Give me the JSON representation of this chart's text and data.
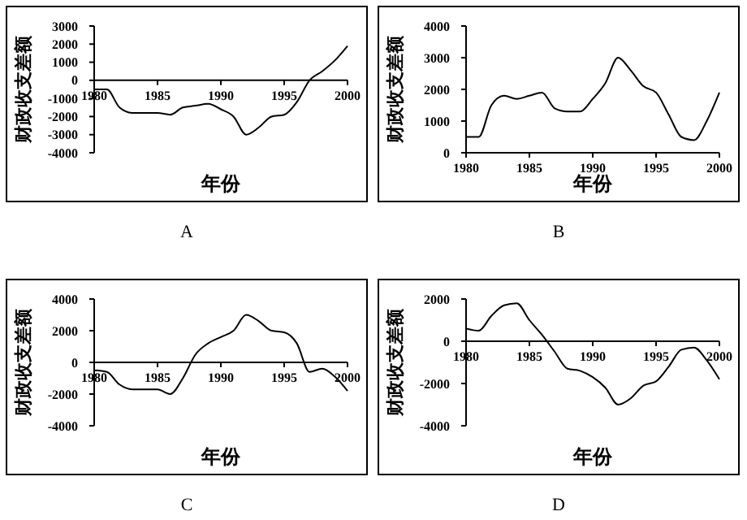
{
  "chart_data": [
    {
      "type": "line",
      "xlabel": "年份",
      "ylabel": "财政收支差额",
      "annotations": [
        "A"
      ],
      "x": [
        1980,
        1981,
        1982,
        1983,
        1984,
        1985,
        1986,
        1987,
        1988,
        1989,
        1990,
        1991,
        1992,
        1993,
        1994,
        1995,
        1996,
        1997,
        1998,
        1999,
        2000
      ],
      "series": [
        {
          "color": "#000000",
          "values": [
            -500,
            -500,
            -1500,
            -1800,
            -1800,
            -1800,
            -1900,
            -1500,
            -1400,
            -1300,
            -1600,
            -2000,
            -3000,
            -2600,
            -2000,
            -1900,
            -1200,
            0,
            500,
            1100,
            1900
          ]
        }
      ],
      "xlim": [
        1980,
        2000
      ],
      "xticks": [
        1980,
        1985,
        1990,
        1995,
        2000
      ],
      "ylim": [
        -4000,
        3000
      ],
      "yticks": [
        -4000,
        -3000,
        -2000,
        -1000,
        0,
        1000,
        2000,
        3000
      ],
      "grid": false,
      "marker": "none",
      "line_style": "solid"
    },
    {
      "type": "line",
      "xlabel": "年份",
      "ylabel": "财政收支差额",
      "annotations": [
        "B"
      ],
      "x": [
        1980,
        1981,
        1982,
        1983,
        1984,
        1985,
        1986,
        1987,
        1988,
        1989,
        1990,
        1991,
        1992,
        1993,
        1994,
        1995,
        1996,
        1997,
        1998,
        1999,
        2000
      ],
      "series": [
        {
          "color": "#000000",
          "values": [
            500,
            500,
            1500,
            1800,
            1700,
            1800,
            1900,
            1400,
            1300,
            1300,
            1700,
            2200,
            3000,
            2600,
            2100,
            1900,
            1200,
            500,
            400,
            1000,
            1900
          ]
        }
      ],
      "xlim": [
        1980,
        2000
      ],
      "xticks": [
        1980,
        1985,
        1990,
        1995,
        2000
      ],
      "ylim": [
        0,
        4000
      ],
      "yticks": [
        0,
        1000,
        2000,
        3000,
        4000
      ],
      "grid": false,
      "marker": "none",
      "line_style": "solid"
    },
    {
      "type": "line",
      "xlabel": "年份",
      "ylabel": "财政收支差额",
      "annotations": [
        "C"
      ],
      "x": [
        1980,
        1981,
        1982,
        1983,
        1984,
        1985,
        1986,
        1987,
        1988,
        1989,
        1990,
        1991,
        1992,
        1993,
        1994,
        1995,
        1996,
        1997,
        1998,
        1999,
        2000
      ],
      "series": [
        {
          "color": "#000000",
          "values": [
            -500,
            -600,
            -1400,
            -1700,
            -1700,
            -1700,
            -2000,
            -1000,
            500,
            1200,
            1600,
            2000,
            3000,
            2600,
            2000,
            1900,
            1200,
            -600,
            -400,
            -900,
            -1800
          ]
        }
      ],
      "xlim": [
        1980,
        2000
      ],
      "xticks": [
        1980,
        1985,
        1990,
        1995,
        2000
      ],
      "ylim": [
        -4000,
        4000
      ],
      "yticks": [
        -4000,
        -2000,
        0,
        2000,
        4000
      ],
      "grid": false,
      "marker": "none",
      "line_style": "solid"
    },
    {
      "type": "line",
      "xlabel": "年份",
      "ylabel": "财政收支差额",
      "annotations": [
        "D"
      ],
      "x": [
        1980,
        1981,
        1982,
        1983,
        1984,
        1985,
        1986,
        1987,
        1988,
        1989,
        1990,
        1991,
        1992,
        1993,
        1994,
        1995,
        1996,
        1997,
        1998,
        1999,
        2000
      ],
      "series": [
        {
          "color": "#000000",
          "values": [
            600,
            500,
            1200,
            1700,
            1800,
            1000,
            300,
            -500,
            -1300,
            -1400,
            -1700,
            -2200,
            -3000,
            -2700,
            -2100,
            -1900,
            -1200,
            -400,
            -300,
            -900,
            -1800
          ]
        }
      ],
      "xlim": [
        1980,
        2000
      ],
      "xticks": [
        1980,
        1985,
        1990,
        1995,
        2000
      ],
      "ylim": [
        -4000,
        2000
      ],
      "yticks": [
        -4000,
        -2000,
        0,
        2000
      ],
      "grid": false,
      "marker": "none",
      "line_style": "solid"
    }
  ]
}
